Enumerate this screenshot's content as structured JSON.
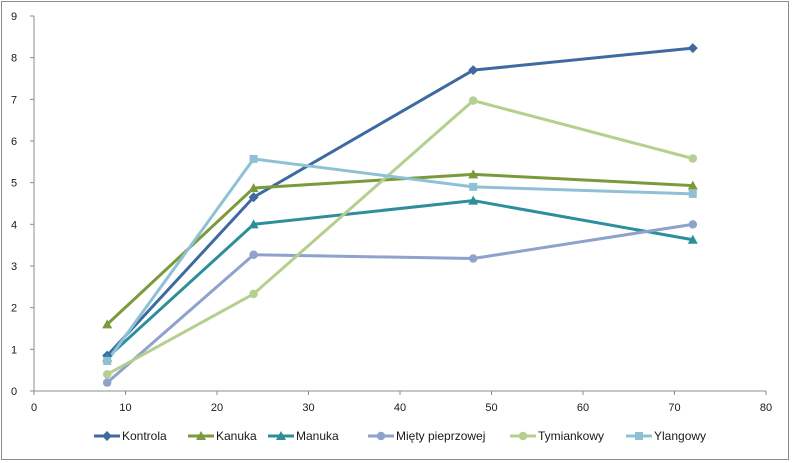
{
  "chart_data": {
    "type": "line",
    "title": "",
    "xlabel": "",
    "ylabel": "",
    "xlim": [
      0,
      80
    ],
    "ylim": [
      0,
      9
    ],
    "x_ticks": [
      0,
      10,
      20,
      30,
      40,
      50,
      60,
      70,
      80
    ],
    "y_ticks": [
      0,
      1,
      2,
      3,
      4,
      5,
      6,
      7,
      8,
      9
    ],
    "grid": false,
    "legend_position": "bottom",
    "series": [
      {
        "name": "Kontrola",
        "color": "#3e6aa0",
        "marker": "diamond",
        "points": [
          [
            8,
            0.85
          ],
          [
            24,
            4.65
          ],
          [
            48,
            7.7
          ],
          [
            72,
            8.23
          ]
        ]
      },
      {
        "name": "Kanuka",
        "color": "#7a9a3c",
        "marker": "triangle",
        "points": [
          [
            8,
            1.6
          ],
          [
            24,
            4.87
          ],
          [
            48,
            5.2
          ],
          [
            72,
            4.93
          ]
        ]
      },
      {
        "name": "Manuka",
        "color": "#2e8f9b",
        "marker": "triangle",
        "points": [
          [
            8,
            0.8
          ],
          [
            24,
            4.0
          ],
          [
            48,
            4.57
          ],
          [
            72,
            3.63
          ]
        ]
      },
      {
        "name": "Mięty pieprzowej",
        "color": "#8fa2cc",
        "marker": "circle",
        "points": [
          [
            8,
            0.2
          ],
          [
            24,
            3.27
          ],
          [
            48,
            3.18
          ],
          [
            72,
            4.0
          ]
        ]
      },
      {
        "name": "Tymiankowy",
        "color": "#b4cf8e",
        "marker": "circle",
        "points": [
          [
            8,
            0.4
          ],
          [
            24,
            2.33
          ],
          [
            48,
            6.97
          ],
          [
            72,
            5.58
          ]
        ]
      },
      {
        "name": "Ylangowy",
        "color": "#8fc1d5",
        "marker": "square",
        "points": [
          [
            8,
            0.72
          ],
          [
            24,
            5.57
          ],
          [
            48,
            4.9
          ],
          [
            72,
            4.73
          ]
        ]
      }
    ]
  }
}
